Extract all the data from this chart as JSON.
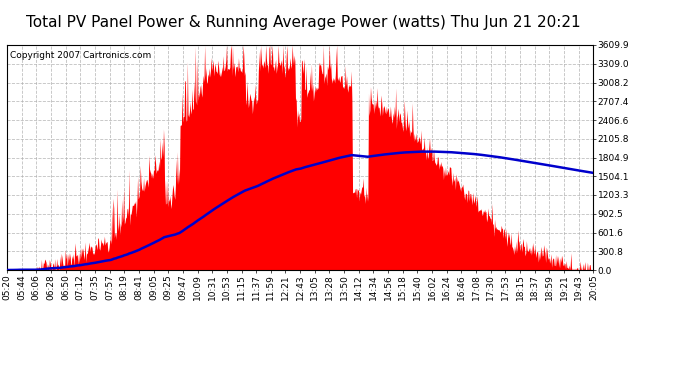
{
  "title": "Total PV Panel Power & Running Average Power (watts) Thu Jun 21 20:21",
  "copyright": "Copyright 2007 Cartronics.com",
  "background_color": "#ffffff",
  "plot_bg_color": "#ffffff",
  "grid_color": "#b0b0b0",
  "bar_color": "#ff0000",
  "line_color": "#0000cc",
  "ytick_labels": [
    "0.0",
    "300.8",
    "601.6",
    "902.5",
    "1203.3",
    "1504.1",
    "1804.9",
    "2105.8",
    "2406.6",
    "2707.4",
    "3008.2",
    "3309.0",
    "3609.9"
  ],
  "ytick_values": [
    0.0,
    300.8,
    601.6,
    902.5,
    1203.3,
    1504.1,
    1804.9,
    2105.8,
    2406.6,
    2707.4,
    3008.2,
    3309.0,
    3609.9
  ],
  "xtick_labels": [
    "05:20",
    "05:44",
    "06:06",
    "06:28",
    "06:50",
    "07:12",
    "07:35",
    "07:57",
    "08:19",
    "08:41",
    "09:05",
    "09:25",
    "09:47",
    "10:09",
    "10:31",
    "10:53",
    "11:15",
    "11:37",
    "11:59",
    "12:21",
    "12:43",
    "13:05",
    "13:28",
    "13:50",
    "14:12",
    "14:34",
    "14:56",
    "15:18",
    "15:40",
    "16:02",
    "16:24",
    "16:46",
    "17:08",
    "17:30",
    "17:53",
    "18:15",
    "18:37",
    "18:59",
    "19:21",
    "19:43",
    "20:05"
  ],
  "ymax": 3609.9,
  "ymin": 0.0,
  "title_fontsize": 11,
  "copyright_fontsize": 6.5,
  "tick_fontsize": 6.5
}
